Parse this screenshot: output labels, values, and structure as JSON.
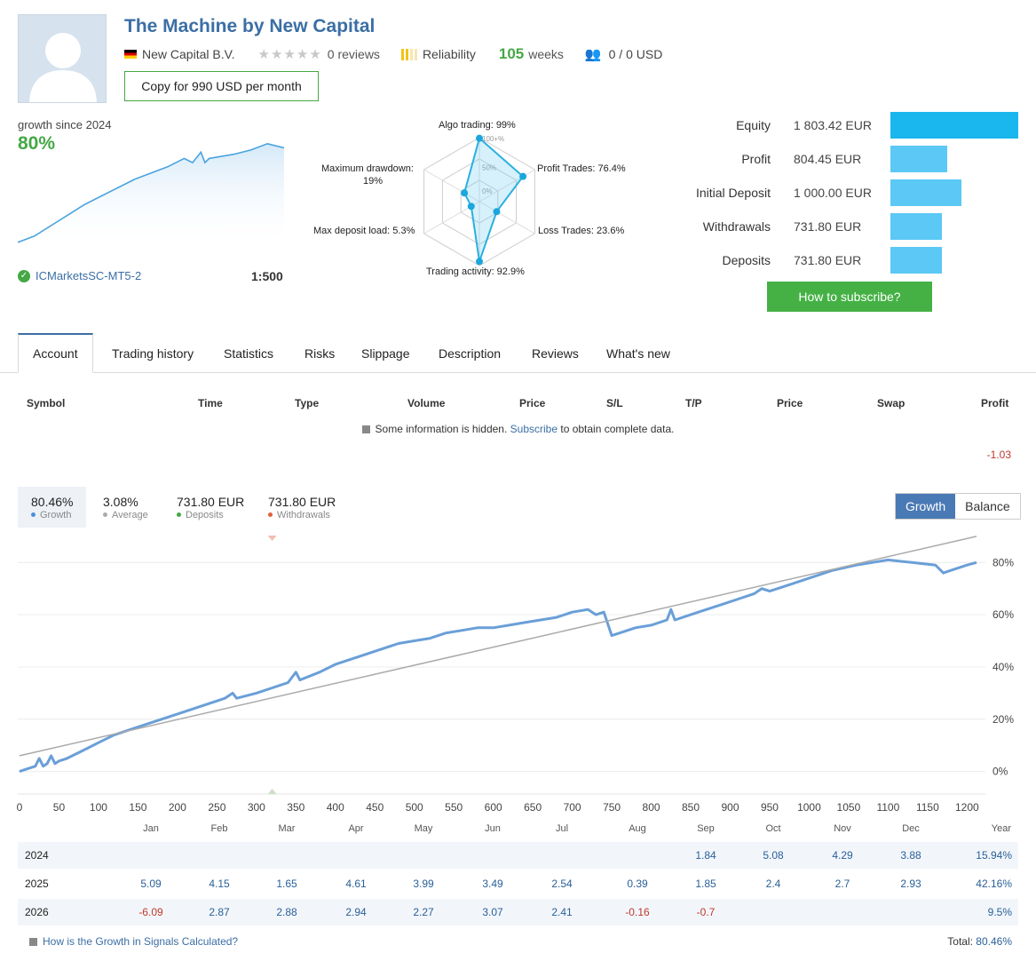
{
  "header": {
    "title": "The Machine by New Capital",
    "provider": "New Capital B.V.",
    "reviews": "0 reviews",
    "reliability_label": "Reliability",
    "weeks_value": "105",
    "weeks_label": "weeks",
    "subscribers": "0 / 0 USD",
    "copy_button": "Copy for 990 USD per month"
  },
  "summary": {
    "growth_since": "growth since 2024",
    "growth_value": "80%",
    "broker": "ICMarketsSC-MT5-2",
    "leverage": "1:500"
  },
  "radar": {
    "labels": {
      "algo": "Algo trading: 99%",
      "profit": "Profit Trades: 76.4%",
      "loss": "Loss Trades: 23.6%",
      "activity": "Trading activity: 92.9%",
      "load": "Max deposit load: 5.3%",
      "drawdown": "Maximum drawdown:",
      "drawdown_value": "19%",
      "ring_100": "100+%",
      "ring_50": "50%",
      "ring_0": "0%"
    },
    "values": {
      "algo": 99,
      "profit": 76.4,
      "loss": 23.6,
      "activity": 92.9,
      "load": 5.3,
      "drawdown": 19
    }
  },
  "equity": {
    "rows": [
      {
        "label": "Equity",
        "value": "1 803.42 EUR",
        "fraction": 1.0,
        "color": "#1ab6ee"
      },
      {
        "label": "Profit",
        "value": "804.45 EUR",
        "fraction": 0.446,
        "color": "#5bc8f5"
      },
      {
        "label": "Initial Deposit",
        "value": "1 000.00 EUR",
        "fraction": 0.554,
        "color": "#5bc8f5"
      },
      {
        "label": "Withdrawals",
        "value": "731.80 EUR",
        "fraction": 0.406,
        "color": "#5bc8f5"
      },
      {
        "label": "Deposits",
        "value": "731.80 EUR",
        "fraction": 0.406,
        "color": "#5bc8f5"
      }
    ],
    "subscribe_button": "How to subscribe?"
  },
  "tabs": [
    "Account",
    "Trading history",
    "Statistics",
    "Risks",
    "Slippage",
    "Description",
    "Reviews",
    "What's new"
  ],
  "table": {
    "headers": [
      "Symbol",
      "Time",
      "Type",
      "Volume",
      "Price",
      "S/L",
      "T/P",
      "Price",
      "Swap",
      "Profit"
    ],
    "hidden_text_before": "Some information is hidden.",
    "hidden_link": "Subscribe",
    "hidden_text_after": "to obtain complete data.",
    "profit_value": "-1.03"
  },
  "growth_stats": [
    {
      "value": "80.46%",
      "label": "Growth",
      "color": "#4a90d9"
    },
    {
      "value": "3.08%",
      "label": "Average",
      "color": "#aaaaaa"
    },
    {
      "value": "731.80 EUR",
      "label": "Deposits",
      "color": "#45a845"
    },
    {
      "value": "731.80 EUR",
      "label": "Withdrawals",
      "color": "#e0603a"
    }
  ],
  "toggle": {
    "growth": "Growth",
    "balance": "Balance"
  },
  "chart_data": {
    "type": "line",
    "x_ticks": [
      0,
      50,
      100,
      150,
      200,
      250,
      300,
      350,
      400,
      450,
      500,
      550,
      600,
      650,
      700,
      750,
      800,
      850,
      900,
      950,
      1000,
      1050,
      1100,
      1150,
      1200
    ],
    "y_ticks": [
      "0%",
      "20%",
      "40%",
      "60%",
      "80%"
    ],
    "xlim": [
      0,
      1220
    ],
    "ylim": [
      -10,
      92
    ],
    "series": [
      {
        "color": "#6a9fd8",
        "points": [
          [
            0,
            0
          ],
          [
            10,
            1
          ],
          [
            20,
            2
          ],
          [
            25,
            5
          ],
          [
            30,
            2
          ],
          [
            35,
            3
          ],
          [
            40,
            6
          ],
          [
            45,
            3
          ],
          [
            50,
            4
          ],
          [
            60,
            5
          ],
          [
            80,
            8
          ],
          [
            100,
            11
          ],
          [
            120,
            14
          ],
          [
            150,
            17
          ],
          [
            170,
            19
          ],
          [
            200,
            22
          ],
          [
            230,
            25
          ],
          [
            250,
            27
          ],
          [
            260,
            28
          ],
          [
            270,
            30
          ],
          [
            275,
            28
          ],
          [
            300,
            30
          ],
          [
            320,
            32
          ],
          [
            340,
            34
          ],
          [
            350,
            38
          ],
          [
            355,
            35
          ],
          [
            380,
            38
          ],
          [
            400,
            41
          ],
          [
            430,
            44
          ],
          [
            450,
            46
          ],
          [
            470,
            48
          ],
          [
            480,
            49
          ],
          [
            500,
            50
          ],
          [
            520,
            51
          ],
          [
            540,
            53
          ],
          [
            560,
            54
          ],
          [
            580,
            55
          ],
          [
            600,
            55
          ],
          [
            620,
            56
          ],
          [
            640,
            57
          ],
          [
            660,
            58
          ],
          [
            680,
            59
          ],
          [
            700,
            61
          ],
          [
            720,
            62
          ],
          [
            730,
            60
          ],
          [
            740,
            61
          ],
          [
            750,
            52
          ],
          [
            760,
            53
          ],
          [
            780,
            55
          ],
          [
            800,
            56
          ],
          [
            820,
            58
          ],
          [
            825,
            62
          ],
          [
            830,
            58
          ],
          [
            850,
            60
          ],
          [
            870,
            62
          ],
          [
            890,
            64
          ],
          [
            910,
            66
          ],
          [
            930,
            68
          ],
          [
            940,
            70
          ],
          [
            950,
            69
          ],
          [
            970,
            71
          ],
          [
            1000,
            74
          ],
          [
            1030,
            77
          ],
          [
            1060,
            79
          ],
          [
            1080,
            80
          ],
          [
            1100,
            81
          ],
          [
            1130,
            80
          ],
          [
            1160,
            79
          ],
          [
            1170,
            76
          ],
          [
            1180,
            77
          ],
          [
            1200,
            79
          ],
          [
            1212,
            80
          ]
        ]
      },
      {
        "color": "#aaaaaa",
        "points": [
          [
            0,
            6
          ],
          [
            1212,
            90
          ]
        ]
      }
    ],
    "markers": {
      "withdrawal_x": 320,
      "deposit_x": 320
    }
  },
  "mini_chart": {
    "points": [
      [
        0,
        0
      ],
      [
        20,
        3
      ],
      [
        40,
        8
      ],
      [
        60,
        13
      ],
      [
        80,
        18
      ],
      [
        100,
        22
      ],
      [
        120,
        26
      ],
      [
        140,
        30
      ],
      [
        160,
        33
      ],
      [
        180,
        36
      ],
      [
        200,
        40
      ],
      [
        210,
        38
      ],
      [
        220,
        43
      ],
      [
        225,
        38
      ],
      [
        230,
        40
      ],
      [
        260,
        42
      ],
      [
        280,
        44
      ],
      [
        300,
        47
      ],
      [
        320,
        45
      ]
    ]
  },
  "monthly": {
    "months": [
      "Jan",
      "Feb",
      "Mar",
      "Apr",
      "May",
      "Jun",
      "Jul",
      "Aug",
      "Sep",
      "Oct",
      "Nov",
      "Dec",
      "Year"
    ],
    "rows": [
      {
        "year": "2024",
        "values": [
          "",
          "",
          "",
          "",
          "",
          "",
          "",
          "",
          "1.84",
          "5.08",
          "4.29",
          "3.88"
        ],
        "total": "15.94%"
      },
      {
        "year": "2025",
        "values": [
          "5.09",
          "4.15",
          "1.65",
          "4.61",
          "3.99",
          "3.49",
          "2.54",
          "0.39",
          "1.85",
          "2.4",
          "2.7",
          "2.93"
        ],
        "total": "42.16%"
      },
      {
        "year": "2026",
        "values": [
          "-6.09",
          "2.87",
          "2.88",
          "2.94",
          "2.27",
          "3.07",
          "2.41",
          "-0.16",
          "-0.7",
          "",
          "",
          ""
        ],
        "total": "9.5%"
      }
    ],
    "footer_link": "How is the Growth in Signals Calculated?",
    "footer_total_label": "Total:",
    "footer_total_value": "80.46%"
  }
}
